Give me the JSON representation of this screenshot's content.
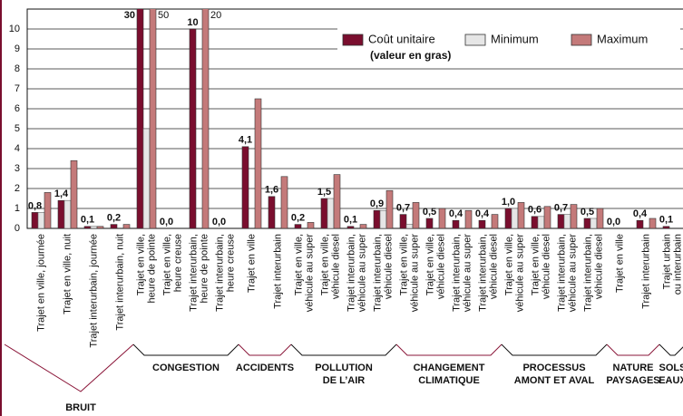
{
  "chart_data": {
    "type": "bar",
    "categories": [
      [
        "Trajet en ville, journée"
      ],
      [
        "Trajet en ville, nuit"
      ],
      [
        "Trajet interurbain, journée"
      ],
      [
        "Trajet interurbain, nuit"
      ],
      [
        "Trajet en ville,",
        "heure de pointe"
      ],
      [
        "Trajet en ville,",
        "heure creuse"
      ],
      [
        "Trajet interurbain,",
        "heure de pointe"
      ],
      [
        "Trajet interurbain,",
        "heure creuse"
      ],
      [
        "Trajet en ville"
      ],
      [
        "Trajet interurbain"
      ],
      [
        "Trajet en ville,",
        "véhicule au super"
      ],
      [
        "Trajet en ville,",
        "véhicule diesel"
      ],
      [
        "Trajet interurbain,",
        "véhicule au super"
      ],
      [
        "Trajet interurbain,",
        "véhicule diesel"
      ],
      [
        "Trajet en ville,",
        "véhicule au super"
      ],
      [
        "Trajet en ville,",
        "véhicule diesel"
      ],
      [
        "Trajet interurbain,",
        "véhicule au super"
      ],
      [
        "Trajet interurbain,",
        "véhicule diesel"
      ],
      [
        "Trajet en ville,",
        "véhicule au super"
      ],
      [
        "Trajet en ville,",
        "véhicule diesel"
      ],
      [
        "Trajet interurbain,",
        "véhicule au super"
      ],
      [
        "Trajet interurbain,",
        "véhicule diesel"
      ],
      [
        "Trajet en ville"
      ],
      [
        "Trajet interurbain"
      ],
      [
        "Trajet urbain",
        "ou interurbain"
      ]
    ],
    "groups": [
      {
        "name": [
          "BRUIT"
        ],
        "count": 4,
        "color": "#8a1538"
      },
      {
        "name": [
          "CONGESTION"
        ],
        "count": 4,
        "color": "#111111"
      },
      {
        "name": [
          "ACCIDENTS"
        ],
        "count": 2,
        "color": "#8a1538"
      },
      {
        "name": [
          "POLLUTION",
          "DE L’AIR"
        ],
        "count": 4,
        "color": "#111111"
      },
      {
        "name": [
          "CHANGEMENT",
          "CLIMATIQUE"
        ],
        "count": 4,
        "color": "#8a1538"
      },
      {
        "name": [
          "PROCESSUS",
          "AMONT  ET  AVAL"
        ],
        "count": 4,
        "color": "#111111"
      },
      {
        "name": [
          "NATURE",
          "PAYSAGES"
        ],
        "count": 2,
        "color": "#8a1538"
      },
      {
        "name": [
          "SOLS",
          "EAUX"
        ],
        "count": 1,
        "color": "#111111"
      }
    ],
    "series": [
      {
        "name": "Coût unitaire",
        "color": "#7a0e2e",
        "values": [
          0.8,
          1.4,
          0.1,
          0.2,
          30,
          0,
          10,
          0,
          4.1,
          1.6,
          0.2,
          1.5,
          0.1,
          0.9,
          0.7,
          0.5,
          0.4,
          0.4,
          1.0,
          0.6,
          0.7,
          0.5,
          0,
          0.4,
          0.1
        ],
        "value_labels": [
          "0,8",
          "1,4",
          "0,1",
          "0,2",
          "30",
          "0,0",
          "10",
          "0,0",
          "4,1",
          "1,6",
          "0,2",
          "1,5",
          "0,1",
          "0,9",
          "0,7",
          "0,5",
          "0,4",
          "0,4",
          "1,0",
          "0,6",
          "0,7",
          "0,5",
          "0,0",
          "0,4",
          "0,1"
        ]
      },
      {
        "name": "Minimum",
        "color": "#e6e6e6",
        "values": [
          0.8,
          1.4,
          0.1,
          null,
          5,
          null,
          null,
          null,
          null,
          null,
          null,
          1.5,
          null,
          0.9,
          0.2,
          null,
          null,
          null,
          1.0,
          0.6,
          0.7,
          0.5,
          null,
          null,
          null
        ]
      },
      {
        "name": "Maximum",
        "color": "#c47a7a",
        "values": [
          1.8,
          3.4,
          0.1,
          0.2,
          50,
          null,
          20,
          null,
          6.5,
          2.6,
          0.3,
          2.7,
          0.2,
          1.9,
          1.3,
          1.0,
          0.9,
          0.7,
          1.3,
          1.1,
          1.2,
          1.0,
          null,
          0.5,
          null
        ],
        "value_labels": [
          null,
          null,
          null,
          null,
          "50",
          null,
          "20",
          null,
          null,
          null,
          null,
          null,
          null,
          null,
          null,
          null,
          null,
          null,
          null,
          null,
          null,
          null,
          null,
          null,
          null
        ]
      }
    ],
    "legend_note": "(valeur en gras)",
    "ylim": [
      0,
      11
    ],
    "yticks": [
      0,
      1,
      2,
      3,
      4,
      5,
      6,
      7,
      8,
      9,
      10
    ],
    "grid": true
  }
}
